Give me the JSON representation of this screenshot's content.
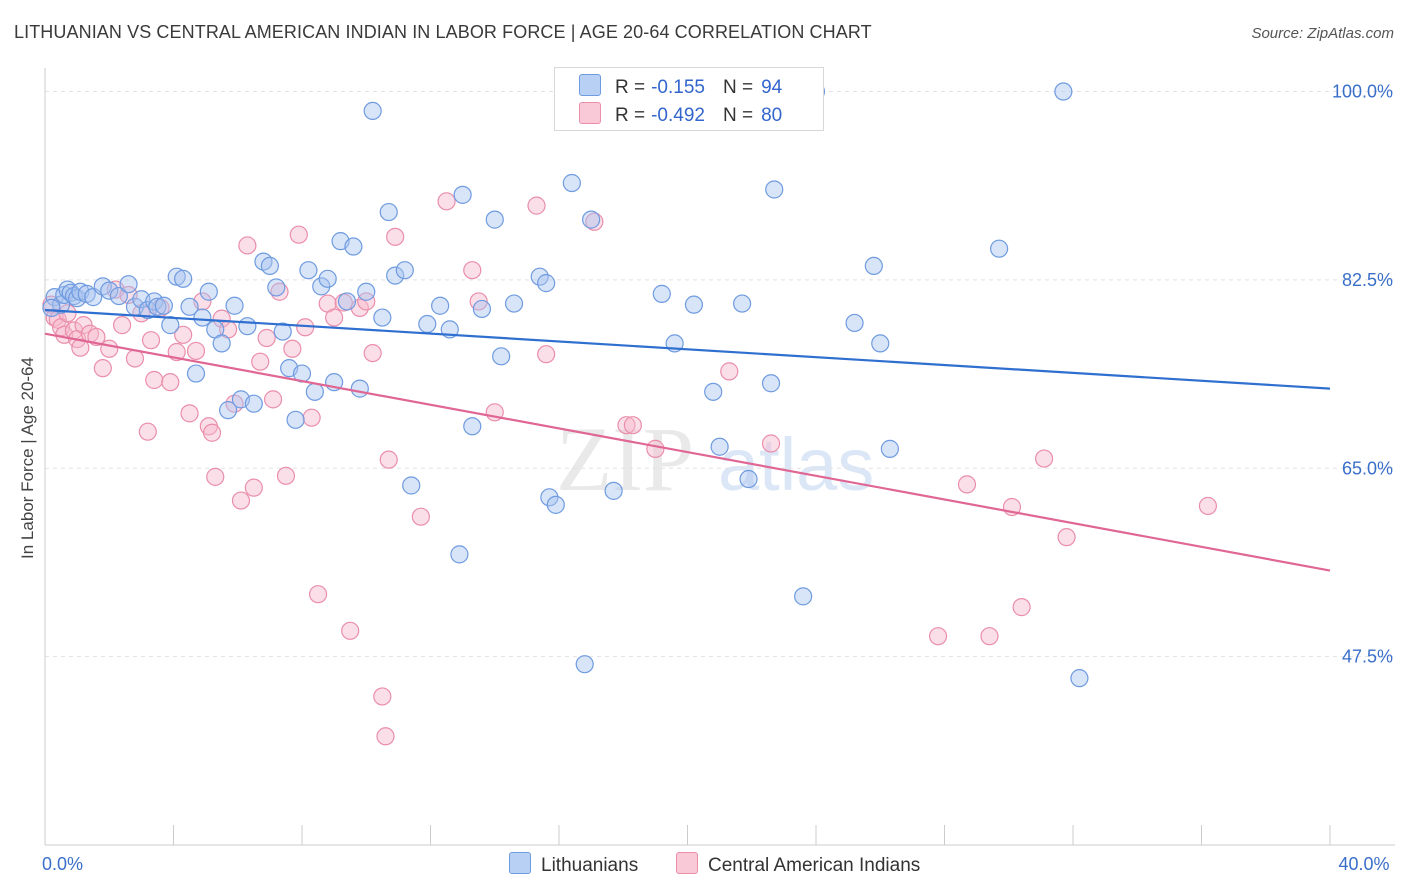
{
  "header": {
    "title": "LITHUANIAN VS CENTRAL AMERICAN INDIAN IN LABOR FORCE | AGE 20-64 CORRELATION CHART",
    "source": "Source: ZipAtlas.com"
  },
  "watermark": {
    "zip": "ZIP",
    "atlas": "atlas"
  },
  "legend": {
    "rows": [
      {
        "r_label": "R =",
        "r_value": "-0.155",
        "n_label": "N =",
        "n_value": "94"
      },
      {
        "r_label": "R =",
        "r_value": "-0.492",
        "n_label": "N =",
        "n_value": "80"
      }
    ]
  },
  "bottom_legend": {
    "items": [
      "Lithuanians",
      "Central American Indians"
    ]
  },
  "colors": {
    "blue_fill": "#a9c4f0",
    "blue_stroke": "#6f9be0",
    "blue_line": "#2f6fcf",
    "pink_fill": "#f6b8cb",
    "pink_stroke": "#ea8eaa",
    "pink_line": "#e06694",
    "tick_label": "#3a6fc9",
    "grid": "#e2e2e2"
  },
  "chart_data": {
    "type": "scatter",
    "ylabel": "In Labor Force | Age 20-64",
    "xlim": [
      0,
      40
    ],
    "ylim": [
      30,
      102
    ],
    "x_tick_labels": [
      {
        "value": 0,
        "label": "0.0%"
      },
      {
        "value": 40,
        "label": "40.0%"
      }
    ],
    "y_tick_labels": [
      {
        "value": 100,
        "label": "100.0%"
      },
      {
        "value": 82.5,
        "label": "82.5%"
      },
      {
        "value": 65,
        "label": "65.0%"
      },
      {
        "value": 47.5,
        "label": "47.5%"
      }
    ],
    "series": [
      {
        "name": "Lithuanians",
        "trend": {
          "x": [
            0,
            40
          ],
          "y": [
            79.7,
            72.4
          ]
        },
        "points": [
          [
            0.3,
            80.9
          ],
          [
            0.5,
            80.2
          ],
          [
            0.6,
            81.1
          ],
          [
            0.7,
            81.6
          ],
          [
            0.8,
            81.3
          ],
          [
            0.9,
            81.0
          ],
          [
            1.0,
            80.8
          ],
          [
            1.1,
            81.4
          ],
          [
            1.3,
            81.2
          ],
          [
            1.5,
            80.9
          ],
          [
            1.8,
            81.9
          ],
          [
            2.0,
            81.5
          ],
          [
            2.3,
            81.0
          ],
          [
            2.6,
            82.1
          ],
          [
            2.8,
            80.0
          ],
          [
            3.0,
            80.7
          ],
          [
            3.2,
            79.7
          ],
          [
            3.4,
            80.5
          ],
          [
            3.5,
            80.0
          ],
          [
            3.7,
            80.1
          ],
          [
            3.9,
            78.3
          ],
          [
            4.1,
            82.8
          ],
          [
            4.3,
            82.6
          ],
          [
            4.5,
            80.0
          ],
          [
            4.7,
            73.8
          ],
          [
            4.9,
            79.0
          ],
          [
            5.1,
            81.4
          ],
          [
            5.3,
            77.9
          ],
          [
            5.5,
            76.6
          ],
          [
            5.7,
            70.4
          ],
          [
            5.9,
            80.1
          ],
          [
            6.1,
            71.4
          ],
          [
            6.3,
            78.2
          ],
          [
            6.5,
            71.0
          ],
          [
            6.8,
            84.2
          ],
          [
            7.0,
            83.8
          ],
          [
            7.2,
            81.8
          ],
          [
            7.4,
            77.7
          ],
          [
            7.6,
            74.3
          ],
          [
            7.8,
            69.5
          ],
          [
            8.0,
            73.8
          ],
          [
            8.2,
            83.4
          ],
          [
            8.4,
            72.1
          ],
          [
            8.6,
            81.9
          ],
          [
            8.8,
            82.6
          ],
          [
            9.0,
            73.0
          ],
          [
            9.2,
            86.1
          ],
          [
            9.4,
            80.5
          ],
          [
            9.6,
            85.6
          ],
          [
            9.8,
            72.4
          ],
          [
            10.0,
            81.4
          ],
          [
            10.2,
            98.2
          ],
          [
            10.5,
            79.0
          ],
          [
            10.7,
            88.8
          ],
          [
            10.9,
            82.9
          ],
          [
            11.2,
            83.4
          ],
          [
            11.4,
            63.4
          ],
          [
            11.9,
            78.4
          ],
          [
            12.3,
            80.1
          ],
          [
            12.6,
            77.9
          ],
          [
            12.9,
            57.0
          ],
          [
            13.0,
            90.4
          ],
          [
            13.3,
            68.9
          ],
          [
            13.6,
            79.8
          ],
          [
            14.0,
            88.1
          ],
          [
            14.2,
            75.4
          ],
          [
            14.6,
            80.3
          ],
          [
            15.4,
            82.8
          ],
          [
            15.6,
            82.2
          ],
          [
            15.7,
            62.3
          ],
          [
            15.9,
            61.6
          ],
          [
            16.4,
            91.5
          ],
          [
            16.8,
            46.8
          ],
          [
            17.0,
            88.1
          ],
          [
            17.7,
            62.9
          ],
          [
            19.2,
            81.2
          ],
          [
            19.6,
            76.6
          ],
          [
            20.2,
            80.2
          ],
          [
            20.8,
            72.1
          ],
          [
            21.0,
            67.0
          ],
          [
            21.7,
            80.3
          ],
          [
            21.9,
            64.0
          ],
          [
            22.6,
            72.9
          ],
          [
            22.7,
            90.9
          ],
          [
            23.6,
            53.1
          ],
          [
            24.0,
            100.0
          ],
          [
            25.2,
            78.5
          ],
          [
            25.8,
            83.8
          ],
          [
            26.0,
            76.6
          ],
          [
            26.3,
            66.8
          ],
          [
            29.7,
            85.4
          ],
          [
            31.7,
            100.0
          ],
          [
            32.2,
            45.5
          ],
          [
            0.2,
            79.9
          ]
        ]
      },
      {
        "name": "Central American Indians",
        "trend": {
          "x": [
            0,
            40
          ],
          "y": [
            77.5,
            55.5
          ]
        },
        "points": [
          [
            0.2,
            80.2
          ],
          [
            0.3,
            79.0
          ],
          [
            0.4,
            78.8
          ],
          [
            0.5,
            78.1
          ],
          [
            0.6,
            77.4
          ],
          [
            0.7,
            79.4
          ],
          [
            0.9,
            77.8
          ],
          [
            1.0,
            77.0
          ],
          [
            1.1,
            76.2
          ],
          [
            1.2,
            78.3
          ],
          [
            1.4,
            77.5
          ],
          [
            1.6,
            77.2
          ],
          [
            1.8,
            74.3
          ],
          [
            2.0,
            76.1
          ],
          [
            2.2,
            81.6
          ],
          [
            2.4,
            78.3
          ],
          [
            2.6,
            81.1
          ],
          [
            2.8,
            75.2
          ],
          [
            3.0,
            79.4
          ],
          [
            3.2,
            68.4
          ],
          [
            3.3,
            76.9
          ],
          [
            3.4,
            73.2
          ],
          [
            3.6,
            79.9
          ],
          [
            3.9,
            73.0
          ],
          [
            4.1,
            75.8
          ],
          [
            4.3,
            77.4
          ],
          [
            4.5,
            70.1
          ],
          [
            4.7,
            75.9
          ],
          [
            4.9,
            80.5
          ],
          [
            5.1,
            68.9
          ],
          [
            5.2,
            68.3
          ],
          [
            5.3,
            64.2
          ],
          [
            5.5,
            78.9
          ],
          [
            5.7,
            77.9
          ],
          [
            5.9,
            71.0
          ],
          [
            6.1,
            62.0
          ],
          [
            6.3,
            85.7
          ],
          [
            6.5,
            63.2
          ],
          [
            6.7,
            74.9
          ],
          [
            6.9,
            77.1
          ],
          [
            7.1,
            71.4
          ],
          [
            7.3,
            81.4
          ],
          [
            7.5,
            64.3
          ],
          [
            7.7,
            76.1
          ],
          [
            7.9,
            86.7
          ],
          [
            8.1,
            78.1
          ],
          [
            8.3,
            69.7
          ],
          [
            8.5,
            53.3
          ],
          [
            8.8,
            80.3
          ],
          [
            9.0,
            79.0
          ],
          [
            9.3,
            80.4
          ],
          [
            9.5,
            49.9
          ],
          [
            9.8,
            79.9
          ],
          [
            10.0,
            80.5
          ],
          [
            10.2,
            75.7
          ],
          [
            10.5,
            43.8
          ],
          [
            10.6,
            40.1
          ],
          [
            10.7,
            65.8
          ],
          [
            10.9,
            86.5
          ],
          [
            11.7,
            60.5
          ],
          [
            12.5,
            89.8
          ],
          [
            13.3,
            83.4
          ],
          [
            13.5,
            80.5
          ],
          [
            14.0,
            70.2
          ],
          [
            15.3,
            89.4
          ],
          [
            15.6,
            75.6
          ],
          [
            17.1,
            87.9
          ],
          [
            18.1,
            69.0
          ],
          [
            18.3,
            69.0
          ],
          [
            19.0,
            66.8
          ],
          [
            21.3,
            74.0
          ],
          [
            22.6,
            67.3
          ],
          [
            27.8,
            49.4
          ],
          [
            28.7,
            63.5
          ],
          [
            29.4,
            49.4
          ],
          [
            30.1,
            61.4
          ],
          [
            30.4,
            52.1
          ],
          [
            31.1,
            65.9
          ],
          [
            31.8,
            58.6
          ],
          [
            36.2,
            61.5
          ]
        ]
      }
    ]
  }
}
